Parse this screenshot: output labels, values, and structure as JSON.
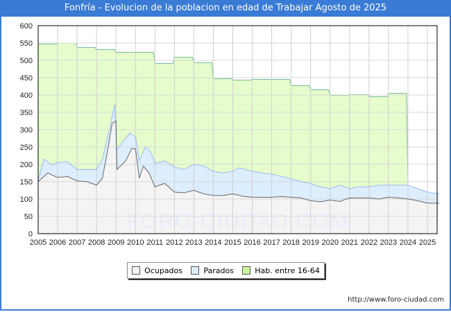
{
  "title": "Fonfría - Evolucion de la poblacion en edad de Trabajar Agosto de 2025",
  "url": "http://www.foro-ciudad.com",
  "watermark": "FORO-CIUDAD.COM",
  "colors": {
    "ocupados": "#f4f4f4",
    "ocupados_line": "#666666",
    "parados": "#ddeeff",
    "parados_line": "#99bbee",
    "hab": "#e6fccc",
    "hab_line": "#77bb99",
    "title_bg": "#3a7bd5"
  },
  "chart_data": {
    "type": "area",
    "title": "Fonfría - Evolucion de la poblacion en edad de Trabajar Agosto de 2025",
    "xlim": [
      2005,
      2025.6
    ],
    "ylim": [
      0,
      600
    ],
    "yticks": [
      0,
      50,
      100,
      150,
      200,
      250,
      300,
      350,
      400,
      450,
      500,
      550,
      600
    ],
    "xticks": [
      "2005",
      "2006",
      "2007",
      "2008",
      "2009",
      "2010",
      "2011",
      "2012",
      "2013",
      "2014",
      "2015",
      "2016",
      "2017",
      "2018",
      "2019",
      "2020",
      "2021",
      "2022",
      "2023",
      "2024",
      "2025"
    ],
    "grid": true,
    "legend_position": "bottom-center",
    "legend": [
      "Ocupados",
      "Parados",
      "Hab. entre 16-64"
    ],
    "series": [
      {
        "name": "Hab. entre 16-64",
        "type": "step",
        "x": [
          2005,
          2006,
          2007,
          2008,
          2009,
          2010,
          2011,
          2012,
          2013,
          2014,
          2015,
          2016,
          2017,
          2018,
          2019,
          2020,
          2021,
          2022,
          2023
        ],
        "values": [
          547,
          550,
          537,
          531,
          523,
          523,
          491,
          509,
          493,
          447,
          443,
          445,
          445,
          427,
          415,
          399,
          401,
          395,
          405
        ],
        "end": 2024
      },
      {
        "name": "Parados",
        "note": "top of stacked area (ocupados+parados)",
        "x": [
          2005,
          2005.3,
          2005.7,
          2006,
          2006.5,
          2007,
          2007.5,
          2008,
          2008.3,
          2008.7,
          2008.9,
          2008.95,
          2009.02,
          2009.3,
          2009.7,
          2010,
          2010.2,
          2010.5,
          2010.8,
          2011,
          2011.5,
          2012,
          2012.5,
          2013,
          2013.5,
          2014,
          2014.5,
          2015,
          2015.3,
          2016,
          2016.5,
          2017,
          2017.5,
          2018,
          2018.5,
          2019,
          2019.5,
          2020,
          2020.5,
          2021,
          2021.5,
          2022,
          2022.5,
          2023,
          2023.5,
          2024,
          2024.5,
          2025,
          2025.6
        ],
        "values": [
          155,
          215,
          198,
          205,
          208,
          185,
          185,
          185,
          215,
          310,
          365,
          372,
          240,
          262,
          290,
          280,
          210,
          250,
          235,
          203,
          210,
          192,
          185,
          200,
          195,
          180,
          175,
          180,
          190,
          180,
          175,
          172,
          165,
          158,
          150,
          145,
          135,
          130,
          140,
          130,
          135,
          135,
          140,
          140,
          140,
          140,
          130,
          120,
          115
        ]
      },
      {
        "name": "Ocupados",
        "x": [
          2005,
          2005.3,
          2005.5,
          2006,
          2006.5,
          2007,
          2007.5,
          2008,
          2008.3,
          2008.6,
          2008.8,
          2009,
          2009.05,
          2009.5,
          2009.8,
          2010,
          2010.2,
          2010.4,
          2010.7,
          2011,
          2011.5,
          2012,
          2012.5,
          2013,
          2013.5,
          2014,
          2014.5,
          2015,
          2015.5,
          2016,
          2016.5,
          2017,
          2017.5,
          2018,
          2018.5,
          2019,
          2019.5,
          2020,
          2020.5,
          2021,
          2021.5,
          2022,
          2022.5,
          2023,
          2023.5,
          2024,
          2024.5,
          2025,
          2025.6
        ],
        "values": [
          150,
          165,
          175,
          162,
          165,
          152,
          150,
          140,
          160,
          250,
          318,
          325,
          185,
          210,
          245,
          245,
          160,
          195,
          175,
          135,
          145,
          120,
          118,
          125,
          115,
          110,
          110,
          115,
          108,
          105,
          105,
          105,
          107,
          105,
          103,
          95,
          92,
          97,
          93,
          103,
          103,
          103,
          100,
          105,
          103,
          100,
          95,
          88,
          88
        ]
      }
    ]
  }
}
